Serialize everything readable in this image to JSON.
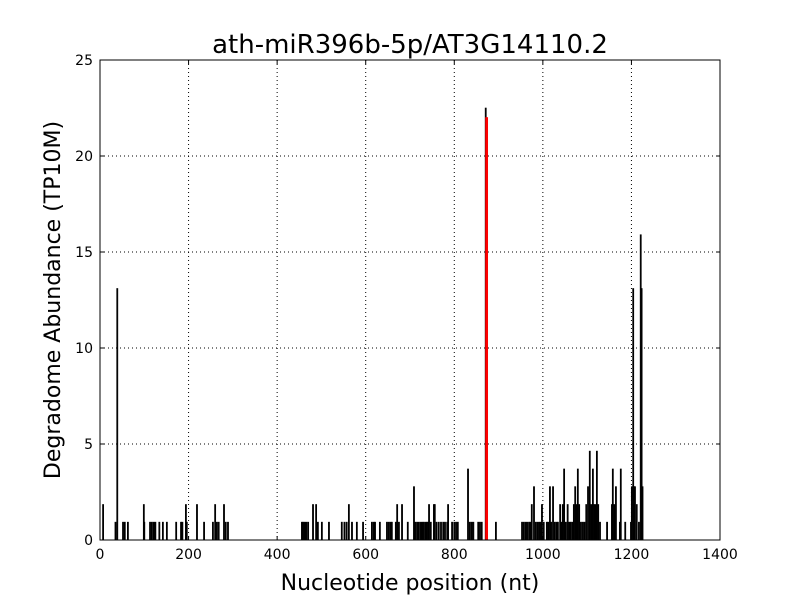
{
  "chart_data": {
    "type": "bar",
    "title": "ath-miR396b-5p/AT3G14110.2",
    "xlabel": "Nucleotide position (nt)",
    "ylabel": "Degradome Abundance (TP10M)",
    "xlim": [
      0,
      1400
    ],
    "ylim": [
      0,
      25
    ],
    "xticks": [
      0,
      200,
      400,
      600,
      800,
      1000,
      1200,
      1400
    ],
    "yticks": [
      0,
      5,
      10,
      15,
      20,
      25
    ],
    "grid": true,
    "colors": {
      "bars": "#000000",
      "highlight": "#ff0000"
    },
    "series": [
      {
        "color": "#000000",
        "points": [
          [
            7,
            1.85
          ],
          [
            35,
            0.93
          ],
          [
            39,
            13.1
          ],
          [
            52,
            0.93
          ],
          [
            56,
            0.93
          ],
          [
            63,
            0.93
          ],
          [
            99,
            1.85
          ],
          [
            100,
            0.93
          ],
          [
            113,
            0.93
          ],
          [
            117,
            0.93
          ],
          [
            121,
            0.93
          ],
          [
            125,
            0.93
          ],
          [
            134,
            0.93
          ],
          [
            142,
            0.93
          ],
          [
            151,
            0.93
          ],
          [
            172,
            0.93
          ],
          [
            183,
            0.93
          ],
          [
            186,
            0.93
          ],
          [
            194,
            1.85
          ],
          [
            196,
            0.93
          ],
          [
            219,
            1.85
          ],
          [
            235,
            0.93
          ],
          [
            255,
            0.93
          ],
          [
            260,
            1.85
          ],
          [
            264,
            0.93
          ],
          [
            268,
            0.93
          ],
          [
            280,
            1.85
          ],
          [
            284,
            0.93
          ],
          [
            289,
            0.93
          ],
          [
            456,
            0.93
          ],
          [
            459,
            0.93
          ],
          [
            462,
            0.93
          ],
          [
            466,
            0.93
          ],
          [
            470,
            0.93
          ],
          [
            481,
            1.85
          ],
          [
            488,
            1.85
          ],
          [
            492,
            0.93
          ],
          [
            501,
            0.93
          ],
          [
            517,
            0.93
          ],
          [
            546,
            0.93
          ],
          [
            552,
            0.93
          ],
          [
            557,
            0.93
          ],
          [
            562,
            1.85
          ],
          [
            569,
            0.93
          ],
          [
            580,
            0.93
          ],
          [
            594,
            0.93
          ],
          [
            614,
            0.93
          ],
          [
            618,
            0.93
          ],
          [
            621,
            0.93
          ],
          [
            632,
            0.93
          ],
          [
            648,
            0.93
          ],
          [
            652,
            0.93
          ],
          [
            656,
            0.93
          ],
          [
            659,
            0.93
          ],
          [
            668,
            0.93
          ],
          [
            671,
            1.85
          ],
          [
            675,
            0.93
          ],
          [
            682,
            1.85
          ],
          [
            695,
            0.93
          ],
          [
            709,
            2.78
          ],
          [
            712,
            0.93
          ],
          [
            716,
            0.93
          ],
          [
            720,
            0.93
          ],
          [
            724,
            0.93
          ],
          [
            728,
            0.93
          ],
          [
            731,
            0.93
          ],
          [
            735,
            0.93
          ],
          [
            738,
            0.93
          ],
          [
            741,
            0.93
          ],
          [
            743,
            1.85
          ],
          [
            747,
            0.93
          ],
          [
            754,
            1.85
          ],
          [
            756,
            1.85
          ],
          [
            760,
            0.93
          ],
          [
            765,
            0.93
          ],
          [
            770,
            0.93
          ],
          [
            775,
            0.93
          ],
          [
            779,
            0.93
          ],
          [
            784,
            0.93
          ],
          [
            786,
            1.85
          ],
          [
            795,
            0.93
          ],
          [
            800,
            0.93
          ],
          [
            804,
            0.93
          ],
          [
            808,
            0.93
          ],
          [
            831,
            3.7
          ],
          [
            835,
            0.93
          ],
          [
            839,
            0.93
          ],
          [
            843,
            0.93
          ],
          [
            854,
            0.93
          ],
          [
            858,
            0.93
          ],
          [
            862,
            0.93
          ],
          [
            871,
            22.5
          ],
          [
            894,
            0.93
          ],
          [
            953,
            0.93
          ],
          [
            957,
            0.93
          ],
          [
            961,
            0.93
          ],
          [
            965,
            0.93
          ],
          [
            969,
            0.93
          ],
          [
            972,
            0.93
          ],
          [
            975,
            1.85
          ],
          [
            980,
            2.78
          ],
          [
            984,
            0.93
          ],
          [
            988,
            0.93
          ],
          [
            992,
            0.93
          ],
          [
            995,
            0.93
          ],
          [
            998,
            1.85
          ],
          [
            1002,
            0.93
          ],
          [
            1009,
            0.93
          ],
          [
            1012,
            0.93
          ],
          [
            1016,
            2.78
          ],
          [
            1019,
            0.93
          ],
          [
            1023,
            2.78
          ],
          [
            1027,
            0.93
          ],
          [
            1031,
            0.93
          ],
          [
            1034,
            0.93
          ],
          [
            1039,
            1.85
          ],
          [
            1042,
            0.93
          ],
          [
            1045,
            1.85
          ],
          [
            1048,
            3.7
          ],
          [
            1052,
            0.93
          ],
          [
            1056,
            1.85
          ],
          [
            1060,
            0.93
          ],
          [
            1063,
            0.93
          ],
          [
            1067,
            0.93
          ],
          [
            1070,
            1.85
          ],
          [
            1073,
            2.78
          ],
          [
            1076,
            1.85
          ],
          [
            1079,
            3.7
          ],
          [
            1082,
            1.85
          ],
          [
            1086,
            0.93
          ],
          [
            1090,
            0.93
          ],
          [
            1094,
            0.93
          ],
          [
            1098,
            1.85
          ],
          [
            1102,
            2.78
          ],
          [
            1106,
            4.63
          ],
          [
            1109,
            1.85
          ],
          [
            1113,
            3.7
          ],
          [
            1116,
            1.85
          ],
          [
            1119,
            1.85
          ],
          [
            1122,
            4.63
          ],
          [
            1125,
            1.85
          ],
          [
            1129,
            0.93
          ],
          [
            1145,
            0.93
          ],
          [
            1156,
            1.85
          ],
          [
            1158,
            3.7
          ],
          [
            1161,
            1.85
          ],
          [
            1165,
            2.78
          ],
          [
            1174,
            0.93
          ],
          [
            1176,
            3.7
          ],
          [
            1186,
            0.93
          ],
          [
            1199,
            0.93
          ],
          [
            1201,
            2.78
          ],
          [
            1204,
            13.1
          ],
          [
            1206,
            2.78
          ],
          [
            1208,
            2.78
          ],
          [
            1212,
            1.85
          ],
          [
            1217,
            0.93
          ],
          [
            1221,
            15.9
          ],
          [
            1223,
            13.1
          ],
          [
            1225,
            2.78
          ]
        ]
      },
      {
        "color": "#ff0000",
        "points": [
          [
            873,
            22.0
          ]
        ]
      }
    ]
  }
}
